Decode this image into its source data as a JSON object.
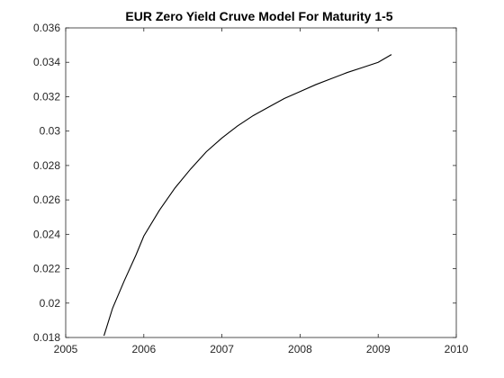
{
  "chart_data": {
    "type": "line",
    "title": "EUR Zero Yield Cruve Model For Maturity 1-5",
    "xlabel": "",
    "ylabel": "",
    "xlim": [
      2005,
      2010
    ],
    "ylim": [
      0.018,
      0.036
    ],
    "x_ticks": [
      {
        "value": 2005,
        "label": "2005"
      },
      {
        "value": 2006,
        "label": "2006"
      },
      {
        "value": 2007,
        "label": "2007"
      },
      {
        "value": 2008,
        "label": "2008"
      },
      {
        "value": 2009,
        "label": "2009"
      },
      {
        "value": 2010,
        "label": "2010"
      }
    ],
    "y_ticks": [
      {
        "value": 0.018,
        "label": "0.018"
      },
      {
        "value": 0.02,
        "label": "0.02"
      },
      {
        "value": 0.022,
        "label": "0.022"
      },
      {
        "value": 0.024,
        "label": "0.024"
      },
      {
        "value": 0.026,
        "label": "0.026"
      },
      {
        "value": 0.028,
        "label": "0.028"
      },
      {
        "value": 0.03,
        "label": "0.03"
      },
      {
        "value": 0.032,
        "label": "0.032"
      },
      {
        "value": 0.034,
        "label": "0.034"
      },
      {
        "value": 0.036,
        "label": "0.036"
      }
    ],
    "grid": false,
    "legend": "none",
    "series": [
      {
        "color": "#000000",
        "x": [
          2005.49,
          2005.6,
          2005.75,
          2005.9,
          2006.0,
          2006.2,
          2006.4,
          2006.6,
          2006.8,
          2007.0,
          2007.2,
          2007.4,
          2007.6,
          2007.8,
          2008.0,
          2008.2,
          2008.4,
          2008.6,
          2008.8,
          2009.0,
          2009.17
        ],
        "y": [
          0.0181,
          0.0197,
          0.0213,
          0.0228,
          0.0239,
          0.0254,
          0.0267,
          0.0278,
          0.0288,
          0.0296,
          0.0303,
          0.0309,
          0.0314,
          0.0319,
          0.0323,
          0.0327,
          0.03305,
          0.0334,
          0.0337,
          0.034,
          0.03445
        ]
      }
    ]
  }
}
